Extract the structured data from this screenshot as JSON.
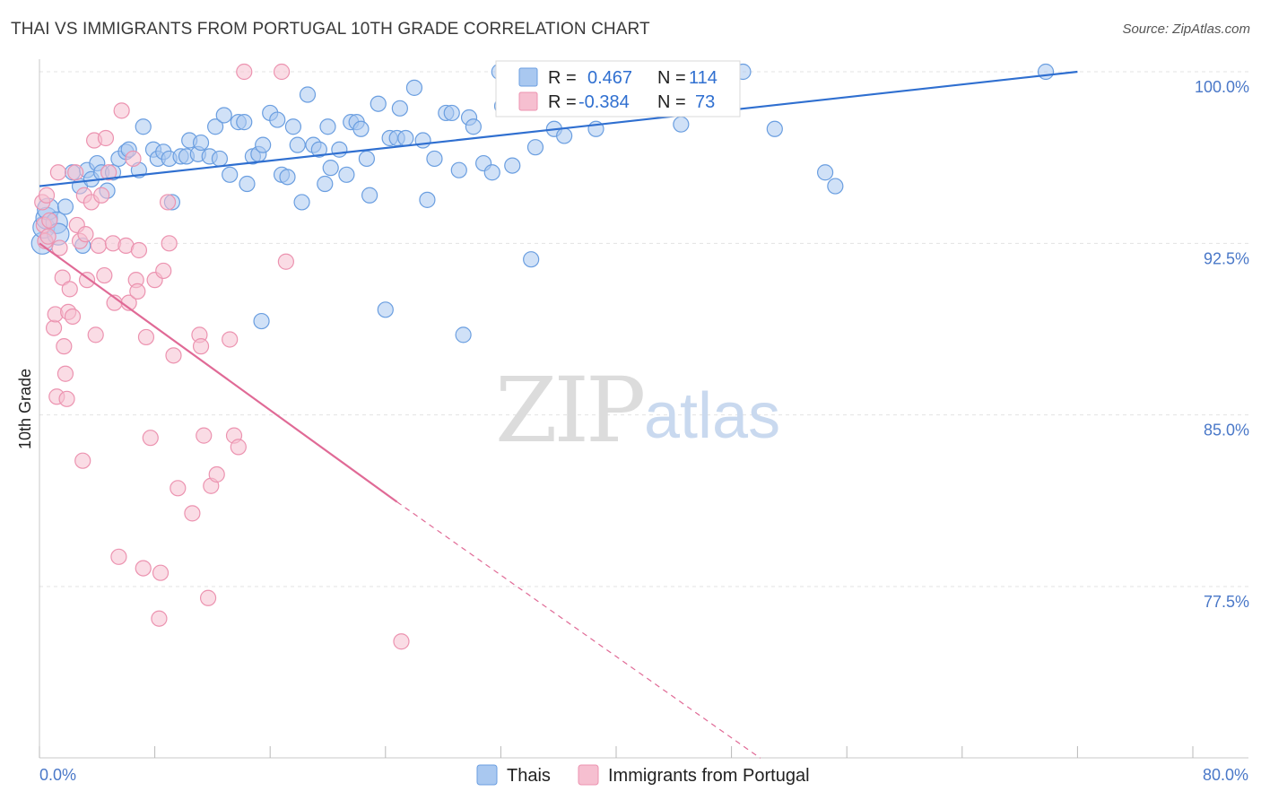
{
  "title": "THAI VS IMMIGRANTS FROM PORTUGAL 10TH GRADE CORRELATION CHART",
  "source": "Source: ZipAtlas.com",
  "watermark": {
    "zip": "ZIP",
    "atlas": "atlas"
  },
  "colors": {
    "thai_fill": "#a9c8f0",
    "thai_stroke": "#6a9ee0",
    "thai_line": "#2f6fd0",
    "portugal_fill": "#f6bfd0",
    "portugal_stroke": "#ec93b0",
    "portugal_line": "#e06a96",
    "grid": "#e3e3e3",
    "axis_text": "#4a78c8"
  },
  "legend": {
    "rows": [
      {
        "r_label": "R =",
        "r_value": "0.467",
        "n_label": "N =",
        "n_value": "114"
      },
      {
        "r_label": "R =",
        "r_value": "-0.384",
        "n_label": "N =",
        "n_value": "73"
      }
    ]
  },
  "bottom_legend": [
    "Thais",
    "Immigrants from Portugal"
  ],
  "chart_data": {
    "type": "scatter",
    "title": "THAI VS IMMIGRANTS FROM PORTUGAL 10TH GRADE CORRELATION CHART",
    "xlabel": "",
    "ylabel": "10th Grade",
    "xlim": [
      0,
      80
    ],
    "ylim": [
      70,
      100.8
    ],
    "x_tick_labels": [
      "0.0%",
      "80.0%"
    ],
    "y_ticks": [
      100.0,
      92.5,
      85.0,
      77.5
    ],
    "y_tick_labels": [
      "100.0%",
      "92.5%",
      "85.0%",
      "77.5%"
    ],
    "grid": true,
    "legend_position": "top-center",
    "series": [
      {
        "name": "Thais",
        "r": 0.467,
        "n": 114,
        "trend": {
          "x0": 0,
          "y0": 95.0,
          "x1": 72,
          "y1": 100.0,
          "dashed_to": null
        },
        "points": [
          [
            0.2,
            92.5
          ],
          [
            0.3,
            93.2
          ],
          [
            0.5,
            93.6
          ],
          [
            0.6,
            94.0
          ],
          [
            1.2,
            93.4
          ],
          [
            1.3,
            92.9
          ],
          [
            1.8,
            94.1
          ],
          [
            2.3,
            95.6
          ],
          [
            2.8,
            95.0
          ],
          [
            3.0,
            92.4
          ],
          [
            3.3,
            95.7
          ],
          [
            3.6,
            95.3
          ],
          [
            4.0,
            96.0
          ],
          [
            4.3,
            95.6
          ],
          [
            4.7,
            94.8
          ],
          [
            5.1,
            95.6
          ],
          [
            5.5,
            96.2
          ],
          [
            6.0,
            96.5
          ],
          [
            6.2,
            96.6
          ],
          [
            6.9,
            95.7
          ],
          [
            7.2,
            97.6
          ],
          [
            7.9,
            96.6
          ],
          [
            8.2,
            96.2
          ],
          [
            8.6,
            96.5
          ],
          [
            9.0,
            96.2
          ],
          [
            9.2,
            94.3
          ],
          [
            9.8,
            96.3
          ],
          [
            10.2,
            96.3
          ],
          [
            10.4,
            97.0
          ],
          [
            11.0,
            96.4
          ],
          [
            11.2,
            96.9
          ],
          [
            11.8,
            96.3
          ],
          [
            12.2,
            97.6
          ],
          [
            12.5,
            96.2
          ],
          [
            12.8,
            98.1
          ],
          [
            13.2,
            95.5
          ],
          [
            13.8,
            97.8
          ],
          [
            14.2,
            97.8
          ],
          [
            14.4,
            95.1
          ],
          [
            14.8,
            96.3
          ],
          [
            15.2,
            96.4
          ],
          [
            15.5,
            96.8
          ],
          [
            15.4,
            89.1
          ],
          [
            16.0,
            98.2
          ],
          [
            16.5,
            97.9
          ],
          [
            16.8,
            95.5
          ],
          [
            17.2,
            95.4
          ],
          [
            17.6,
            97.6
          ],
          [
            17.9,
            96.8
          ],
          [
            18.2,
            94.3
          ],
          [
            18.6,
            99.0
          ],
          [
            19.0,
            96.8
          ],
          [
            19.4,
            96.6
          ],
          [
            19.8,
            95.1
          ],
          [
            20.0,
            97.6
          ],
          [
            20.2,
            95.8
          ],
          [
            20.8,
            96.6
          ],
          [
            21.3,
            95.5
          ],
          [
            21.6,
            97.8
          ],
          [
            22.0,
            97.8
          ],
          [
            22.3,
            97.5
          ],
          [
            22.7,
            96.2
          ],
          [
            22.9,
            94.6
          ],
          [
            23.5,
            98.6
          ],
          [
            24.0,
            89.6
          ],
          [
            24.3,
            97.1
          ],
          [
            24.8,
            97.1
          ],
          [
            25.0,
            98.4
          ],
          [
            25.4,
            97.1
          ],
          [
            26.0,
            99.3
          ],
          [
            26.6,
            97.0
          ],
          [
            26.9,
            94.4
          ],
          [
            27.4,
            96.2
          ],
          [
            28.2,
            98.2
          ],
          [
            28.6,
            98.2
          ],
          [
            29.1,
            95.7
          ],
          [
            29.4,
            88.5
          ],
          [
            29.8,
            98.0
          ],
          [
            30.1,
            97.6
          ],
          [
            30.8,
            96.0
          ],
          [
            31.4,
            95.6
          ],
          [
            31.9,
            100.0
          ],
          [
            32.1,
            98.5
          ],
          [
            32.8,
            95.9
          ],
          [
            33.3,
            98.6
          ],
          [
            34.1,
            91.8
          ],
          [
            34.4,
            96.7
          ],
          [
            35.7,
            97.5
          ],
          [
            36.4,
            97.2
          ],
          [
            37.4,
            98.9
          ],
          [
            38.6,
            97.5
          ],
          [
            39.6,
            100.0
          ],
          [
            40.1,
            99.6
          ],
          [
            42.7,
            99.3
          ],
          [
            44.5,
            97.7
          ],
          [
            46.2,
            98.6
          ],
          [
            47.3,
            99.0
          ],
          [
            48.8,
            100.0
          ],
          [
            51.0,
            97.5
          ],
          [
            54.5,
            95.6
          ],
          [
            55.2,
            95.0
          ],
          [
            69.8,
            100.0
          ]
        ]
      },
      {
        "name": "Immigrants from Portugal",
        "r": -0.384,
        "n": 73,
        "trend": {
          "x0": 0,
          "y0": 92.5,
          "x1": 24.8,
          "y1": 81.2,
          "dashed_to": {
            "x": 50,
            "y": 70
          }
        },
        "points": [
          [
            0.2,
            94.3
          ],
          [
            0.3,
            93.3
          ],
          [
            0.4,
            92.6
          ],
          [
            0.5,
            94.6
          ],
          [
            0.6,
            92.8
          ],
          [
            0.7,
            93.5
          ],
          [
            1.0,
            88.8
          ],
          [
            1.1,
            89.4
          ],
          [
            1.2,
            85.8
          ],
          [
            1.3,
            95.6
          ],
          [
            1.4,
            92.3
          ],
          [
            1.6,
            91.0
          ],
          [
            1.7,
            88.0
          ],
          [
            1.8,
            86.8
          ],
          [
            1.9,
            85.7
          ],
          [
            2.0,
            89.5
          ],
          [
            2.1,
            90.5
          ],
          [
            2.3,
            89.3
          ],
          [
            2.5,
            95.6
          ],
          [
            2.6,
            93.3
          ],
          [
            2.8,
            92.6
          ],
          [
            3.0,
            83.0
          ],
          [
            3.1,
            94.6
          ],
          [
            3.2,
            92.9
          ],
          [
            3.3,
            90.9
          ],
          [
            3.6,
            94.3
          ],
          [
            3.8,
            97.0
          ],
          [
            3.9,
            88.5
          ],
          [
            4.1,
            92.4
          ],
          [
            4.3,
            94.6
          ],
          [
            4.5,
            91.1
          ],
          [
            4.6,
            97.1
          ],
          [
            4.8,
            95.6
          ],
          [
            5.1,
            92.5
          ],
          [
            5.2,
            89.9
          ],
          [
            5.5,
            78.8
          ],
          [
            5.7,
            98.3
          ],
          [
            6.0,
            92.4
          ],
          [
            6.2,
            89.9
          ],
          [
            6.5,
            96.2
          ],
          [
            6.7,
            90.9
          ],
          [
            6.8,
            90.4
          ],
          [
            6.9,
            92.2
          ],
          [
            7.2,
            78.3
          ],
          [
            7.4,
            88.4
          ],
          [
            7.7,
            84.0
          ],
          [
            8.0,
            90.9
          ],
          [
            8.3,
            76.1
          ],
          [
            8.4,
            78.1
          ],
          [
            8.6,
            91.3
          ],
          [
            8.9,
            94.3
          ],
          [
            9.0,
            92.5
          ],
          [
            9.3,
            87.6
          ],
          [
            9.6,
            81.8
          ],
          [
            10.6,
            80.7
          ],
          [
            11.1,
            88.5
          ],
          [
            11.2,
            88.0
          ],
          [
            11.4,
            84.1
          ],
          [
            11.7,
            77.0
          ],
          [
            11.9,
            81.9
          ],
          [
            12.3,
            82.4
          ],
          [
            13.2,
            88.3
          ],
          [
            13.5,
            84.1
          ],
          [
            13.8,
            83.6
          ],
          [
            14.2,
            100.0
          ],
          [
            16.8,
            100.0
          ],
          [
            17.1,
            91.7
          ],
          [
            25.1,
            75.1
          ]
        ]
      }
    ]
  }
}
